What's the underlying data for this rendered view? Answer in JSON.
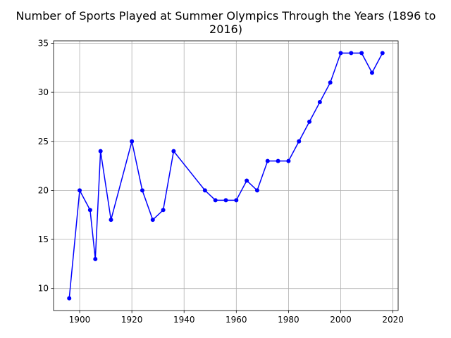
{
  "chart_data": {
    "type": "line",
    "title_lines": [
      "Number of Sports Played at Summer Olympics Through the Years (1896 to",
      "2016)"
    ],
    "xlabel": "",
    "ylabel": "",
    "xlim": [
      1890,
      2022
    ],
    "ylim": [
      7.75,
      35.25
    ],
    "x_ticks": [
      1900,
      1920,
      1940,
      1960,
      1980,
      2000,
      2020
    ],
    "y_ticks": [
      10,
      15,
      20,
      25,
      30,
      35
    ],
    "grid": true,
    "line_color": "#0000ff",
    "marker": "circle",
    "x": [
      1896,
      1900,
      1904,
      1906,
      1908,
      1912,
      1920,
      1924,
      1928,
      1932,
      1936,
      1948,
      1952,
      1956,
      1960,
      1964,
      1968,
      1972,
      1976,
      1980,
      1984,
      1988,
      1992,
      1996,
      2000,
      2004,
      2008,
      2012,
      2016
    ],
    "values": [
      9,
      20,
      18,
      13,
      24,
      17,
      25,
      20,
      17,
      18,
      24,
      20,
      19,
      19,
      19,
      21,
      20,
      23,
      23,
      23,
      25,
      27,
      29,
      31,
      34,
      34,
      34,
      32,
      34
    ]
  }
}
